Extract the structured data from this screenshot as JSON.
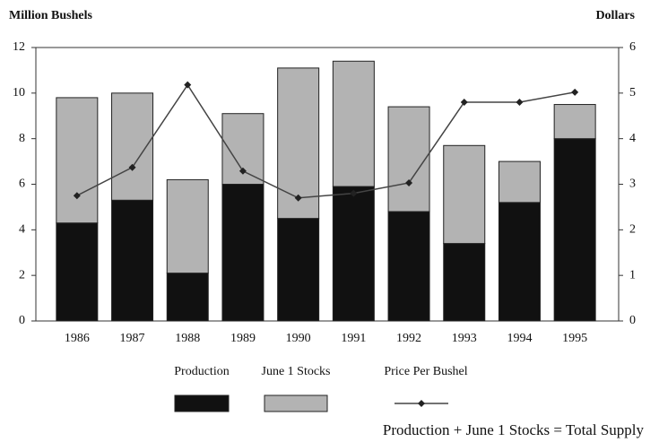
{
  "chart_data": {
    "type": "bar",
    "y_label": "Million Bushels",
    "y2_label": "Dollars",
    "categories": [
      "1986",
      "1987",
      "1988",
      "1989",
      "1990",
      "1991",
      "1992",
      "1993",
      "1994",
      "1995"
    ],
    "stacked": true,
    "series": [
      {
        "name": "Production",
        "color": "#111111",
        "values": [
          4.3,
          5.3,
          2.1,
          6.0,
          4.5,
          5.9,
          4.8,
          3.4,
          5.2,
          8.0
        ]
      },
      {
        "name": "June 1 Stocks",
        "color": "#b3b3b3",
        "values": [
          5.5,
          4.7,
          4.1,
          3.1,
          6.6,
          5.5,
          4.6,
          4.3,
          1.8,
          1.5
        ]
      },
      {
        "name": "Price Per Bushel",
        "type": "line",
        "axis": "y2",
        "color": "#444444",
        "values": [
          2.75,
          3.37,
          5.18,
          3.29,
          2.7,
          2.8,
          3.03,
          4.8,
          4.8,
          5.02
        ]
      }
    ],
    "ylim": [
      0,
      12
    ],
    "yticks": [
      0,
      2,
      4,
      6,
      8,
      10,
      12
    ],
    "y2lim": [
      0,
      6
    ],
    "y2ticks": [
      0,
      1,
      2,
      3,
      4,
      5,
      6
    ],
    "grid": false,
    "annotation": "Production + June 1 Stocks = Total Supply"
  }
}
